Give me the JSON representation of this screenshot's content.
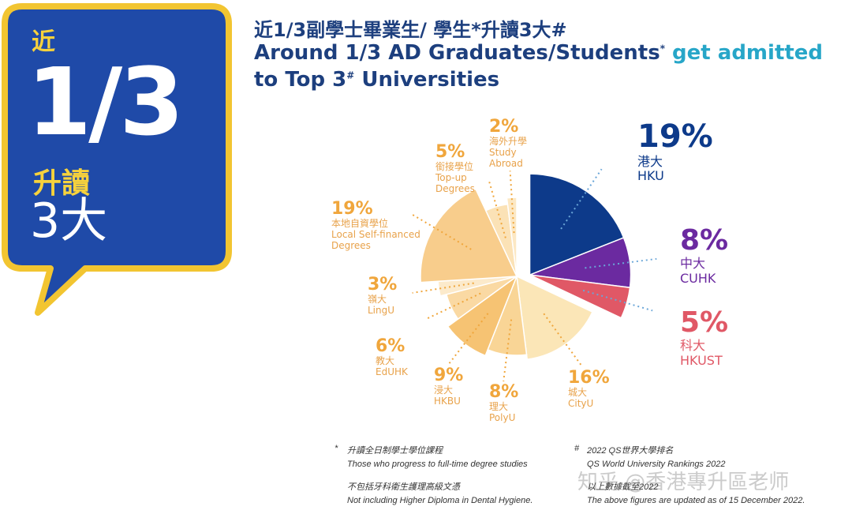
{
  "callout": {
    "near": "近",
    "fraction": "1/3",
    "progress": "升讀",
    "top3": "3大"
  },
  "heading": {
    "zh_text": "近1/3副學士畢業生/ 學生*升讀3大#",
    "en_line1_part1": "Around 1/3 AD Graduates/Students",
    "en_line1_mark": "*",
    "en_line1_part2": " get admitted",
    "en_line2_part1": "to Top 3",
    "en_line2_mark": "#",
    "en_line2_part2": " Universities"
  },
  "chart_data": {
    "type": "pie",
    "unit": "%",
    "slices": [
      {
        "name_en": "HKU",
        "name_zh": "港大",
        "value": 19,
        "label": "19%",
        "color": "#0d3a8a",
        "exploded": true
      },
      {
        "name_en": "CUHK",
        "name_zh": "中大",
        "value": 8,
        "label": "8%",
        "color": "#6b2aa0",
        "exploded": true
      },
      {
        "name_en": "HKUST",
        "name_zh": "科大",
        "value": 5,
        "label": "5%",
        "color": "#e05866",
        "exploded": true
      },
      {
        "name_en": "CityU",
        "name_zh": "城大",
        "value": 16,
        "label": "16%",
        "color": "#fbe6b7",
        "exploded": false
      },
      {
        "name_en": "PolyU",
        "name_zh": "理大",
        "value": 8,
        "label": "8%",
        "color": "#f9d596",
        "exploded": false
      },
      {
        "name_en": "HKBU",
        "name_zh": "浸大",
        "value": 9,
        "label": "9%",
        "color": "#f6c373",
        "exploded": false
      },
      {
        "name_en": "EdUHK",
        "name_zh": "教大",
        "value": 6,
        "label": "6%",
        "color": "#fad9a3",
        "exploded": false
      },
      {
        "name_en": "LingU",
        "name_zh": "嶺大",
        "value": 3,
        "label": "3%",
        "color": "#fceacb",
        "exploded": false
      },
      {
        "name_en": "Local Self-financed Degrees",
        "name_zh": "本地自資學位",
        "value": 19,
        "label": "19%",
        "color": "#f8cd8c",
        "exploded": false
      },
      {
        "name_en": "Top-up Degrees",
        "name_zh": "銜接學位",
        "value": 5,
        "label": "5%",
        "color": "#fbe2b6",
        "exploded": false
      },
      {
        "name_en": "Study Abroad",
        "name_zh": "海外升學",
        "value": 2,
        "label": "2%",
        "color": "#fce8c4",
        "exploded": false
      }
    ]
  },
  "notes": {
    "asterisk_mark": "*",
    "asterisk_zh": "升讀全日制學士學位課程",
    "asterisk_en": "Those who progress to full-time degree studies",
    "excl_zh": "不包括牙科衛生護理高級文憑",
    "excl_en": "Not including Higher Diploma in Dental Hygiene.",
    "hash_mark": "#",
    "hash_zh": "2022 QS世界大學排名",
    "hash_en": "QS World University Rankings 2022",
    "hash_zh2": "以上數據截至2022",
    "hash_en2": "The above figures are updated as of 15 December 2022."
  },
  "watermark": "知乎 @香港專升區老师",
  "colors": {
    "callout_blue": "#1f4aa8",
    "callout_border": "#f2c531",
    "accent_yellow": "#f7d23c",
    "heading_navy": "#1d3f7e",
    "heading_cyan": "#27a6c8",
    "pct_orange": "#f0a63c",
    "label_orange": "#e8a24a"
  }
}
